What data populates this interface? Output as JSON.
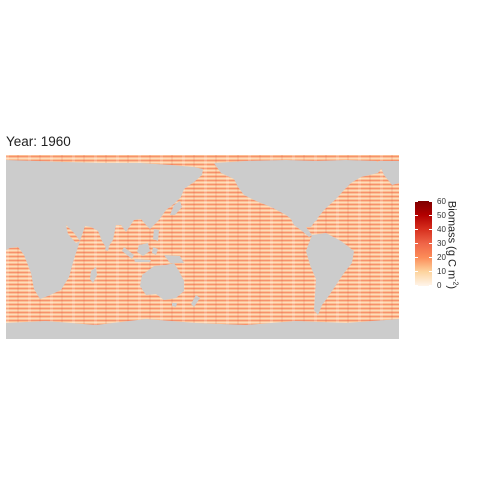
{
  "chart_data": {
    "type": "heatmap",
    "title": "Year: 1960",
    "legend_title": "Biomass (g C m",
    "legend_title_exponent": "-2",
    "legend_title_close": ")",
    "legend_position": "right",
    "legend_ticks": [
      "60",
      "50",
      "40",
      "30",
      "20",
      "10",
      "0"
    ],
    "legend_range": [
      0,
      60
    ],
    "color_scale": [
      "#fff5eb",
      "#fdd49e",
      "#fc8d59",
      "#ef6548",
      "#d7301f",
      "#b30000",
      "#7f0000"
    ],
    "land_color": "#cccccc",
    "typical_range": [
      10,
      40
    ],
    "grid": false
  }
}
